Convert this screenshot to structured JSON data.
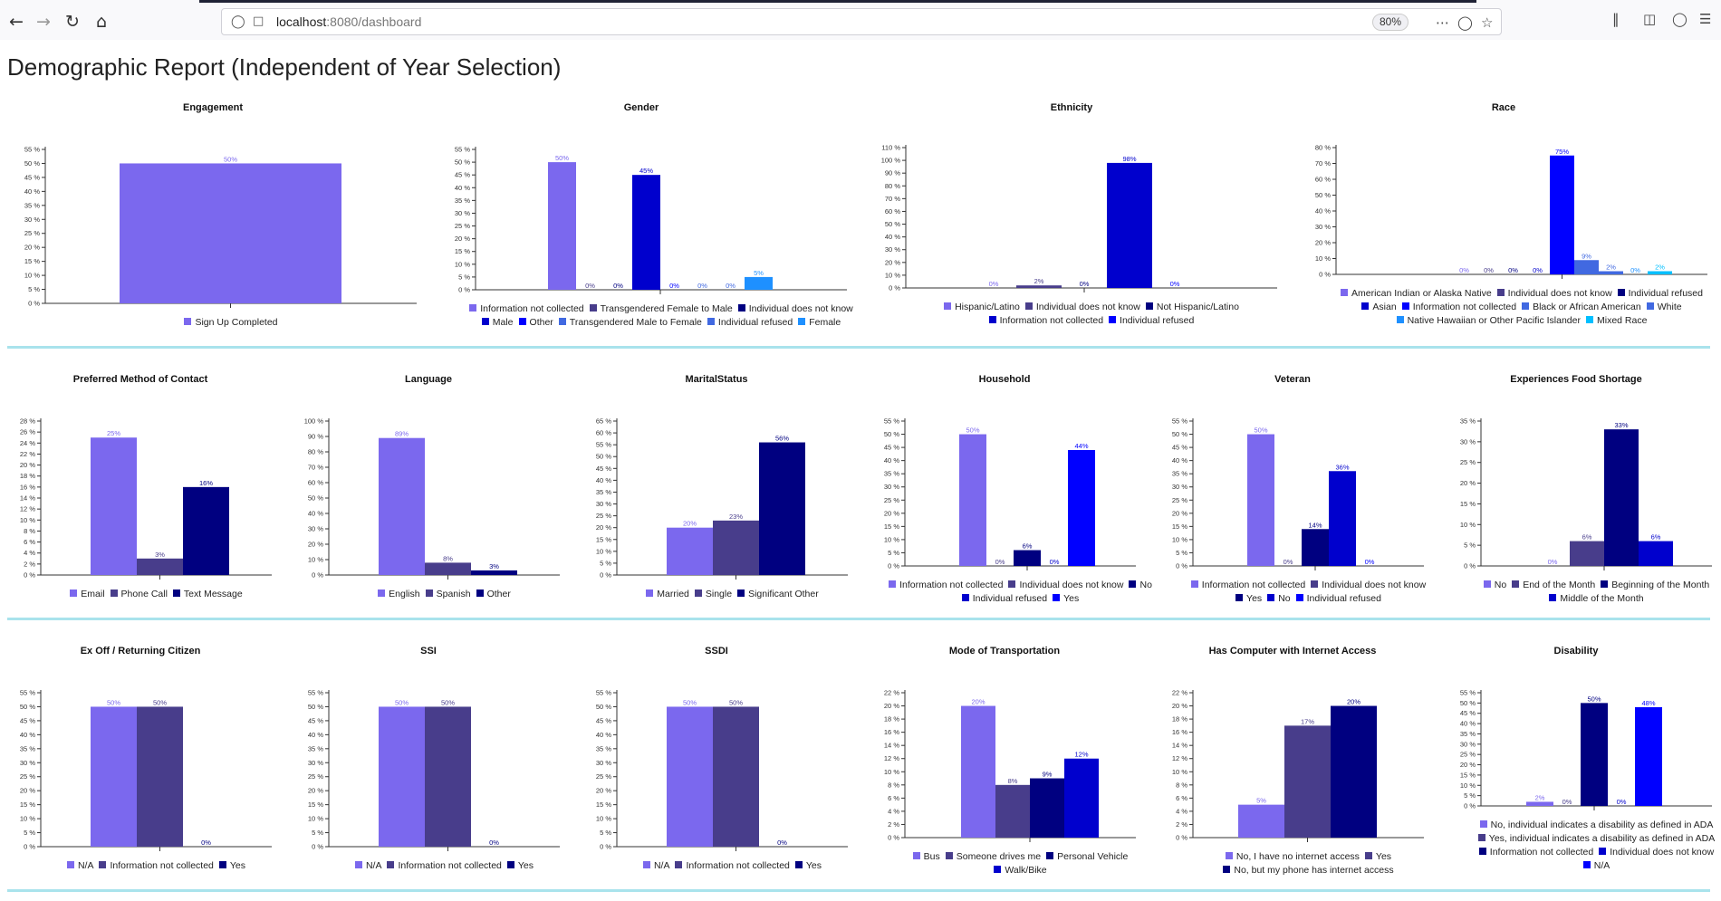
{
  "browser": {
    "url_host": "localhost",
    "url_rest": ":8080/dashboard",
    "zoom": "80%"
  },
  "page": {
    "title": "Demographic Report (Independent of Year Selection)"
  },
  "colors": {
    "c0": "#7b68ee",
    "c1": "#483d8b",
    "c2": "#000080",
    "c3": "#0000cd",
    "c4": "#0000ff",
    "c5": "#4169e1",
    "c6": "#1e90ff",
    "c7": "#00bfff",
    "separator": "#a9e3ec"
  },
  "charts": [
    {
      "id": "engagement",
      "title": "Engagement",
      "type": "bar",
      "ytick": 5,
      "ymax": 55,
      "categories": [
        "Sign Up Completed"
      ],
      "values": [
        50
      ],
      "colors": [
        0
      ],
      "legend": [
        {
          "label": "Sign Up Completed",
          "c": 0
        }
      ]
    },
    {
      "id": "gender",
      "title": "Gender",
      "type": "bar",
      "ytick": 5,
      "ymax": 55,
      "categories": [
        "Information not collected",
        "Transgendered Female to Male",
        "Individual does not know",
        "Male",
        "Other",
        "Transgendered Male to Female",
        "Individual refused",
        "Female"
      ],
      "values": [
        50,
        0,
        0,
        45,
        0,
        0,
        0,
        5
      ],
      "colors": [
        0,
        1,
        2,
        3,
        4,
        5,
        5,
        6
      ],
      "legend": [
        {
          "label": "Information not collected",
          "c": 0
        },
        {
          "label": "Transgendered Female to Male",
          "c": 1
        },
        {
          "label": "Individual does not know",
          "c": 2
        },
        {
          "label": "Male",
          "c": 3
        },
        {
          "label": "Other",
          "c": 4
        },
        {
          "label": "Transgendered Male to Female",
          "c": 5
        },
        {
          "label": "Individual refused",
          "c": 5
        },
        {
          "label": "Female",
          "c": 6
        }
      ]
    },
    {
      "id": "ethnicity",
      "title": "Ethnicity",
      "type": "bar",
      "ytick": 10,
      "ymax": 110,
      "categories": [
        "Hispanic/Latino",
        "Individual does not know",
        "Not Hispanic/Latino",
        "Information not collected",
        "Individual refused"
      ],
      "values": [
        0,
        2,
        0,
        98,
        0
      ],
      "colors": [
        0,
        1,
        2,
        3,
        4
      ],
      "legend": [
        {
          "label": "Hispanic/Latino",
          "c": 0
        },
        {
          "label": "Individual does not know",
          "c": 1
        },
        {
          "label": "Not Hispanic/Latino",
          "c": 2
        },
        {
          "label": "Information not collected",
          "c": 3
        },
        {
          "label": "Individual refused",
          "c": 4
        }
      ]
    },
    {
      "id": "race",
      "title": "Race",
      "type": "bar",
      "ytick": 10,
      "ymax": 80,
      "categories": [
        "American Indian or Alaska Native",
        "Individual does not know",
        "Individual refused",
        "Asian",
        "Information not collected",
        "Black or African American",
        "White",
        "Native Hawaiian or Other Pacific Islander",
        "Mixed Race"
      ],
      "values": [
        0,
        0,
        0,
        0,
        75,
        9,
        2,
        0,
        2
      ],
      "colors": [
        0,
        1,
        2,
        3,
        4,
        5,
        5,
        6,
        7
      ],
      "legend": [
        {
          "label": "American Indian or Alaska Native",
          "c": 0
        },
        {
          "label": "Individual does not know",
          "c": 1
        },
        {
          "label": "Individual refused",
          "c": 2
        },
        {
          "label": "Asian",
          "c": 3
        },
        {
          "label": "Information not collected",
          "c": 4
        },
        {
          "label": "Black or African American",
          "c": 5
        },
        {
          "label": "White",
          "c": 5
        },
        {
          "label": "Native Hawaiian or Other Pacific Islander",
          "c": 6
        },
        {
          "label": "Mixed Race",
          "c": 7
        }
      ]
    },
    {
      "id": "contact",
      "title": "Preferred Method of Contact",
      "type": "bar",
      "ytick": 2,
      "ymax": 28,
      "categories": [
        "Email",
        "Phone Call",
        "Text Message"
      ],
      "values": [
        25,
        3,
        16
      ],
      "colors": [
        0,
        1,
        2
      ],
      "legend": [
        {
          "label": "Email",
          "c": 0
        },
        {
          "label": "Phone Call",
          "c": 1
        },
        {
          "label": "Text Message",
          "c": 2
        }
      ]
    },
    {
      "id": "language",
      "title": "Language",
      "type": "bar",
      "ytick": 10,
      "ymax": 100,
      "categories": [
        "English",
        "Spanish",
        "Other"
      ],
      "values": [
        89,
        8,
        3
      ],
      "colors": [
        0,
        1,
        2
      ],
      "legend": [
        {
          "label": "English",
          "c": 0
        },
        {
          "label": "Spanish",
          "c": 1
        },
        {
          "label": "Other",
          "c": 2
        }
      ]
    },
    {
      "id": "marital",
      "title": "MaritalStatus",
      "type": "bar",
      "ytick": 5,
      "ymax": 65,
      "categories": [
        "Married",
        "Single",
        "Significant Other"
      ],
      "values": [
        20,
        23,
        56
      ],
      "colors": [
        0,
        1,
        2
      ],
      "legend": [
        {
          "label": "Married",
          "c": 0
        },
        {
          "label": "Single",
          "c": 1
        },
        {
          "label": "Significant Other",
          "c": 2
        }
      ]
    },
    {
      "id": "household",
      "title": "Household",
      "type": "bar",
      "ytick": 5,
      "ymax": 55,
      "categories": [
        "Information not collected",
        "Individual does not know",
        "No",
        "Individual refused",
        "Yes"
      ],
      "values": [
        50,
        0,
        6,
        0,
        44
      ],
      "colors": [
        0,
        1,
        2,
        3,
        4
      ],
      "legend": [
        {
          "label": "Information not collected",
          "c": 0
        },
        {
          "label": "Individual does not know",
          "c": 1
        },
        {
          "label": "No",
          "c": 2
        },
        {
          "label": "Individual refused",
          "c": 3
        },
        {
          "label": "Yes",
          "c": 4
        }
      ]
    },
    {
      "id": "veteran",
      "title": "Veteran",
      "type": "bar",
      "ytick": 5,
      "ymax": 55,
      "categories": [
        "Information not collected",
        "Individual does not know",
        "Yes",
        "No",
        "Individual refused"
      ],
      "values": [
        50,
        0,
        14,
        36,
        0
      ],
      "colors": [
        0,
        1,
        2,
        3,
        4
      ],
      "legend": [
        {
          "label": "Information not collected",
          "c": 0
        },
        {
          "label": "Individual does not know",
          "c": 1
        },
        {
          "label": "Yes",
          "c": 2
        },
        {
          "label": "No",
          "c": 3
        },
        {
          "label": "Individual refused",
          "c": 4
        }
      ]
    },
    {
      "id": "food",
      "title": "Experiences Food Shortage",
      "type": "bar",
      "ytick": 5,
      "ymax": 35,
      "categories": [
        "No",
        "End of the Month",
        "Beginning of the Month",
        "Middle of the Month"
      ],
      "values": [
        0,
        6,
        33,
        6
      ],
      "colors": [
        0,
        1,
        2,
        3
      ],
      "legend": [
        {
          "label": "No",
          "c": 0
        },
        {
          "label": "End of the Month",
          "c": 1
        },
        {
          "label": "Beginning of the Month",
          "c": 2
        },
        {
          "label": "Middle of the Month",
          "c": 3
        }
      ]
    },
    {
      "id": "exoff",
      "title": "Ex Off / Returning Citizen",
      "type": "bar",
      "ytick": 5,
      "ymax": 55,
      "categories": [
        "N/A",
        "Information not collected",
        "Yes"
      ],
      "values": [
        50,
        50,
        0
      ],
      "colors": [
        0,
        1,
        2
      ],
      "legend": [
        {
          "label": "N/A",
          "c": 0
        },
        {
          "label": "Information not collected",
          "c": 1
        },
        {
          "label": "Yes",
          "c": 2
        }
      ]
    },
    {
      "id": "ssi",
      "title": "SSI",
      "type": "bar",
      "ytick": 5,
      "ymax": 55,
      "categories": [
        "N/A",
        "Information not collected",
        "Yes"
      ],
      "values": [
        50,
        50,
        0
      ],
      "colors": [
        0,
        1,
        2
      ],
      "legend": [
        {
          "label": "N/A",
          "c": 0
        },
        {
          "label": "Information not collected",
          "c": 1
        },
        {
          "label": "Yes",
          "c": 2
        }
      ]
    },
    {
      "id": "ssdi",
      "title": "SSDI",
      "type": "bar",
      "ytick": 5,
      "ymax": 55,
      "categories": [
        "N/A",
        "Information not collected",
        "Yes"
      ],
      "values": [
        50,
        50,
        0
      ],
      "colors": [
        0,
        1,
        2
      ],
      "legend": [
        {
          "label": "N/A",
          "c": 0
        },
        {
          "label": "Information not collected",
          "c": 1
        },
        {
          "label": "Yes",
          "c": 2
        }
      ]
    },
    {
      "id": "transport",
      "title": "Mode of Transportation",
      "type": "bar",
      "ytick": 2,
      "ymax": 22,
      "categories": [
        "Bus",
        "Someone drives me",
        "Personal Vehicle",
        "Walk/Bike"
      ],
      "values": [
        20,
        8,
        9,
        12
      ],
      "colors": [
        0,
        1,
        2,
        3
      ],
      "legend": [
        {
          "label": "Bus",
          "c": 0
        },
        {
          "label": "Someone drives me",
          "c": 1
        },
        {
          "label": "Personal Vehicle",
          "c": 2
        },
        {
          "label": "Walk/Bike",
          "c": 3
        }
      ]
    },
    {
      "id": "computer",
      "title": "Has Computer with Internet Access",
      "type": "bar",
      "ytick": 2,
      "ymax": 22,
      "categories": [
        "No, I have no internet access",
        "Yes",
        "No, but my phone has internet access"
      ],
      "values": [
        5,
        17,
        20
      ],
      "colors": [
        0,
        1,
        2
      ],
      "legend": [
        {
          "label": "No, I have no internet access",
          "c": 0
        },
        {
          "label": "Yes",
          "c": 1
        },
        {
          "label": "No, but my phone has internet access",
          "c": 2
        }
      ]
    },
    {
      "id": "disability",
      "title": "Disability",
      "type": "bar",
      "ytick": 5,
      "ymax": 55,
      "categories": [
        "No, individual indicates a disability as defined in ADA",
        "Yes, individual indicates a disability as defined in ADA",
        "Information not collected",
        "Individual does not know",
        "N/A"
      ],
      "values": [
        2,
        0,
        50,
        0,
        48
      ],
      "colors": [
        0,
        1,
        2,
        3,
        4
      ],
      "legend": [
        {
          "label": "No, individual indicates a disability as defined in ADA",
          "c": 0
        },
        {
          "label": "Yes, individual indicates a disability as defined in ADA",
          "c": 1
        },
        {
          "label": "Information not collected",
          "c": 2
        },
        {
          "label": "Individual does not know",
          "c": 3
        },
        {
          "label": "N/A",
          "c": 4
        }
      ]
    }
  ]
}
